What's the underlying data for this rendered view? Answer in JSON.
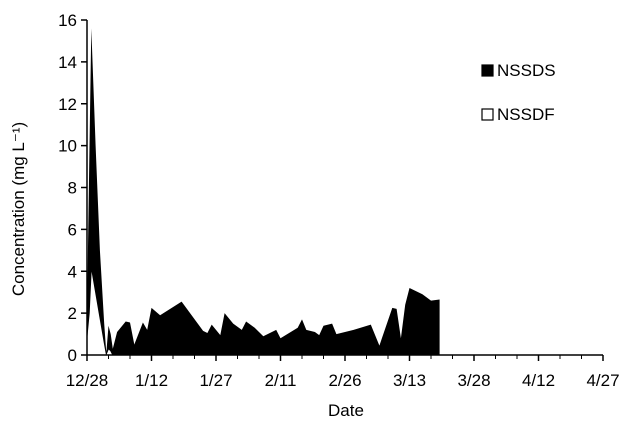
{
  "chart_data": {
    "type": "area",
    "title": "",
    "xlabel": "Date",
    "ylabel": "Concentration (mg L⁻¹)",
    "ylim": [
      0,
      16
    ],
    "yticks": [
      0,
      2,
      4,
      6,
      8,
      10,
      12,
      14,
      16
    ],
    "xticks": [
      "12/28",
      "1/12",
      "1/27",
      "2/11",
      "2/26",
      "3/13",
      "3/28",
      "4/12",
      "4/27"
    ],
    "x_tick_days": [
      0,
      15,
      30,
      45,
      60,
      75,
      90,
      105,
      120
    ],
    "legend_position": "right",
    "grid": false,
    "series": [
      {
        "name": "NSSDS",
        "fill": "#000000",
        "points": [
          [
            0,
            2.0
          ],
          [
            0.5,
            9.0
          ],
          [
            1,
            15.6
          ],
          [
            2,
            10.0
          ],
          [
            3,
            5.0
          ],
          [
            4,
            1.5
          ],
          [
            4.5,
            0.1
          ],
          [
            5,
            1.4
          ],
          [
            5.5,
            1.0
          ],
          [
            6,
            0.3
          ],
          [
            7,
            1.1
          ],
          [
            9,
            1.6
          ],
          [
            10,
            1.55
          ],
          [
            11,
            0.5
          ],
          [
            13,
            1.55
          ],
          [
            14,
            1.2
          ],
          [
            15,
            2.25
          ],
          [
            17,
            1.9
          ],
          [
            22,
            2.55
          ],
          [
            27,
            1.15
          ],
          [
            28,
            1.05
          ],
          [
            29,
            1.45
          ],
          [
            31,
            0.95
          ],
          [
            32,
            2.0
          ],
          [
            34,
            1.5
          ],
          [
            36,
            1.2
          ],
          [
            37,
            1.6
          ],
          [
            39,
            1.3
          ],
          [
            41,
            0.9
          ],
          [
            43,
            1.1
          ],
          [
            44,
            1.2
          ],
          [
            45,
            0.8
          ],
          [
            49,
            1.3
          ],
          [
            50,
            1.7
          ],
          [
            51,
            1.2
          ],
          [
            53,
            1.1
          ],
          [
            54,
            0.95
          ],
          [
            55,
            1.4
          ],
          [
            57,
            1.5
          ],
          [
            58,
            1.0
          ],
          [
            62,
            1.2
          ],
          [
            66,
            1.45
          ],
          [
            68,
            0.45
          ],
          [
            71,
            2.25
          ],
          [
            72,
            2.2
          ],
          [
            73,
            0.8
          ],
          [
            74,
            2.4
          ],
          [
            75,
            3.2
          ],
          [
            78,
            2.9
          ],
          [
            80,
            2.6
          ],
          [
            82,
            2.65
          ]
        ]
      },
      {
        "name": "NSSDF",
        "fill": "#ffffff",
        "points": [
          [
            0,
            0.9
          ],
          [
            0.5,
            2.0
          ],
          [
            1,
            4.2
          ],
          [
            2,
            3.0
          ],
          [
            3,
            1.8
          ],
          [
            4,
            0.6
          ],
          [
            4.5,
            0.05
          ],
          [
            5,
            0.3
          ],
          [
            5.5,
            0.2
          ],
          [
            6,
            0.0
          ],
          [
            82,
            0.0
          ]
        ]
      }
    ]
  }
}
